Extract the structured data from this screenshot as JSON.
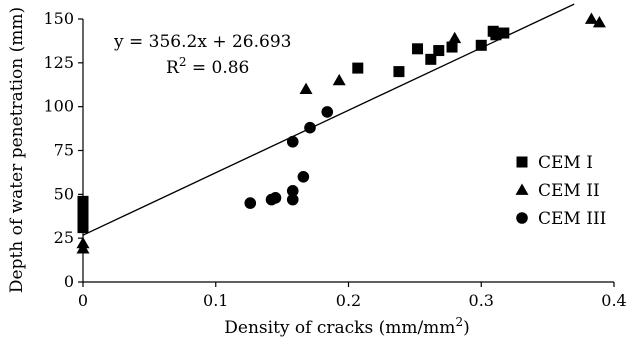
{
  "chart_data": {
    "type": "scatter",
    "title": "",
    "xlabel": "Density of cracks (mm/mm",
    "xlabel_sup": "2",
    "xlabel_end": ")",
    "ylabel": "Depth of water penetration (mm)",
    "xlim": [
      0,
      0.4
    ],
    "ylim": [
      0,
      150
    ],
    "xticks": [
      "0",
      "0.1",
      "0.2",
      "0.3",
      "0.4"
    ],
    "yticks": [
      "0",
      "25",
      "50",
      "75",
      "100",
      "125",
      "150"
    ],
    "grid": false,
    "legend_position": "right",
    "annotation_equation": "y = 356.2x + 26.693",
    "annotation_r2_prefix": "R",
    "annotation_r2_sup": "2",
    "annotation_r2_value": " = 0.86",
    "trendline": {
      "slope": 356.2,
      "intercept": 26.693,
      "x_range": [
        0,
        0.37
      ]
    },
    "series": [
      {
        "name": "CEM I",
        "marker": "square",
        "points": [
          [
            0,
            46
          ],
          [
            0,
            40
          ],
          [
            0,
            37
          ],
          [
            0,
            34
          ],
          [
            0,
            31
          ],
          [
            0.207,
            122
          ],
          [
            0.238,
            120
          ],
          [
            0.252,
            133
          ],
          [
            0.262,
            127
          ],
          [
            0.268,
            132
          ],
          [
            0.278,
            134
          ],
          [
            0.3,
            135
          ],
          [
            0.309,
            143
          ],
          [
            0.311,
            141
          ],
          [
            0.317,
            142
          ]
        ]
      },
      {
        "name": "CEM II",
        "marker": "triangle",
        "points": [
          [
            0,
            22
          ],
          [
            0,
            19
          ],
          [
            0.168,
            110
          ],
          [
            0.193,
            115
          ],
          [
            0.28,
            139
          ],
          [
            0.383,
            150
          ],
          [
            0.389,
            148
          ]
        ]
      },
      {
        "name": "CEM III",
        "marker": "circle",
        "points": [
          [
            0.126,
            45
          ],
          [
            0.142,
            47
          ],
          [
            0.145,
            48
          ],
          [
            0.158,
            52
          ],
          [
            0.158,
            47
          ],
          [
            0.158,
            80
          ],
          [
            0.166,
            60
          ],
          [
            0.171,
            88
          ],
          [
            0.184,
            97
          ]
        ]
      }
    ]
  }
}
